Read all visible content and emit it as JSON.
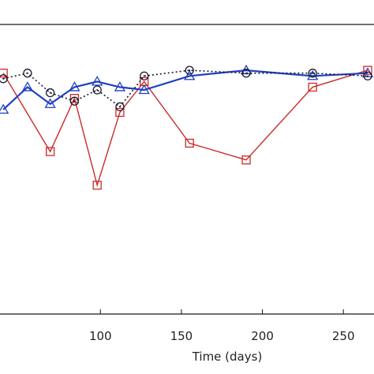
{
  "chart_data": {
    "type": "line",
    "title": "",
    "xlabel": "Time (days)",
    "ylabel": "",
    "xlim": [
      38,
      265
    ],
    "ylim": [
      0,
      100
    ],
    "x_ticks": [
      100,
      150,
      200,
      250
    ],
    "grid": false,
    "series": [
      {
        "color": "#cc2a2a",
        "marker": "square",
        "line": "solid",
        "points": [
          [
            40,
            86
          ],
          [
            69,
            58
          ],
          [
            84,
            77
          ],
          [
            98,
            46
          ],
          [
            112,
            72
          ],
          [
            127,
            83
          ],
          [
            155,
            61
          ],
          [
            190,
            55
          ],
          [
            231,
            81
          ],
          [
            265,
            87
          ]
        ]
      },
      {
        "color": "#1f3fc4",
        "marker": "triangle",
        "line": "solid-thick",
        "points": [
          [
            40,
            73
          ],
          [
            55,
            81
          ],
          [
            69,
            75
          ],
          [
            84,
            81
          ],
          [
            98,
            83
          ],
          [
            112,
            81
          ],
          [
            127,
            80
          ],
          [
            155,
            85
          ],
          [
            190,
            87
          ],
          [
            231,
            85
          ],
          [
            265,
            86
          ]
        ]
      },
      {
        "color": "#1a1a2e",
        "marker": "circle",
        "line": "dotted",
        "points": [
          [
            40,
            84
          ],
          [
            55,
            86
          ],
          [
            69,
            79
          ],
          [
            84,
            76
          ],
          [
            98,
            80
          ],
          [
            112,
            74
          ],
          [
            127,
            85
          ],
          [
            155,
            87
          ],
          [
            190,
            86
          ],
          [
            231,
            86
          ],
          [
            265,
            85
          ]
        ]
      }
    ]
  }
}
